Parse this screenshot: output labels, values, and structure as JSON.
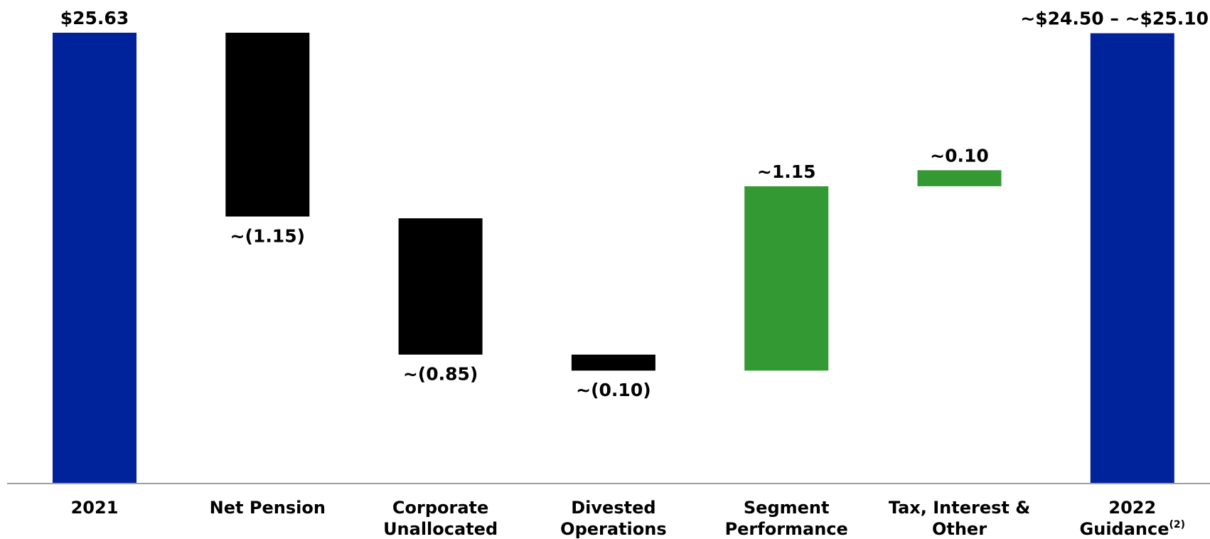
{
  "chart_data": {
    "type": "bar",
    "subtype": "waterfall",
    "grid": false,
    "legend": "none",
    "ylim": [
      0,
      25.63
    ],
    "categories": [
      {
        "lines": [
          "2021"
        ],
        "sup": ""
      },
      {
        "lines": [
          "Net Pension"
        ],
        "sup": ""
      },
      {
        "lines": [
          "Corporate",
          "Unallocated"
        ],
        "sup": ""
      },
      {
        "lines": [
          "Divested",
          "Operations"
        ],
        "sup": ""
      },
      {
        "lines": [
          "Segment",
          "Performance"
        ],
        "sup": ""
      },
      {
        "lines": [
          "Tax, Interest &",
          "Other"
        ],
        "sup": ""
      },
      {
        "lines": [
          "2022",
          "Guidance"
        ],
        "sup": "(2)"
      }
    ],
    "bars": [
      {
        "kind": "total",
        "start": 0,
        "end": 25.63,
        "value": 25.63,
        "label": "$25.63",
        "label_pos": "above",
        "color": "#00239c"
      },
      {
        "kind": "decrease",
        "start": 25.63,
        "end": 15.18,
        "value": -1.15,
        "label": "~(1.15)",
        "label_pos": "below",
        "color": "#000000"
      },
      {
        "kind": "decrease",
        "start": 15.08,
        "end": 7.33,
        "value": -0.85,
        "label": "~(0.85)",
        "label_pos": "below",
        "color": "#000000"
      },
      {
        "kind": "decrease",
        "start": 7.33,
        "end": 6.42,
        "value": -0.1,
        "label": "~(0.10)",
        "label_pos": "below",
        "color": "#000000"
      },
      {
        "kind": "increase",
        "start": 6.42,
        "end": 16.9,
        "value": 1.15,
        "label": "~1.15",
        "label_pos": "above",
        "color": "#339933"
      },
      {
        "kind": "increase",
        "start": 16.9,
        "end": 17.81,
        "value": 0.1,
        "label": "~0.10",
        "label_pos": "above",
        "color": "#339933"
      },
      {
        "kind": "total",
        "start": 0,
        "end": 25.6,
        "value_range": [
          24.5,
          25.1
        ],
        "label": "~$24.50 – ~$25.10",
        "label_pos": "above",
        "color": "#00239c"
      }
    ],
    "colors": {
      "total": "#00239c",
      "decrease": "#000000",
      "increase": "#339933",
      "axis": "#9e9e9e"
    }
  }
}
